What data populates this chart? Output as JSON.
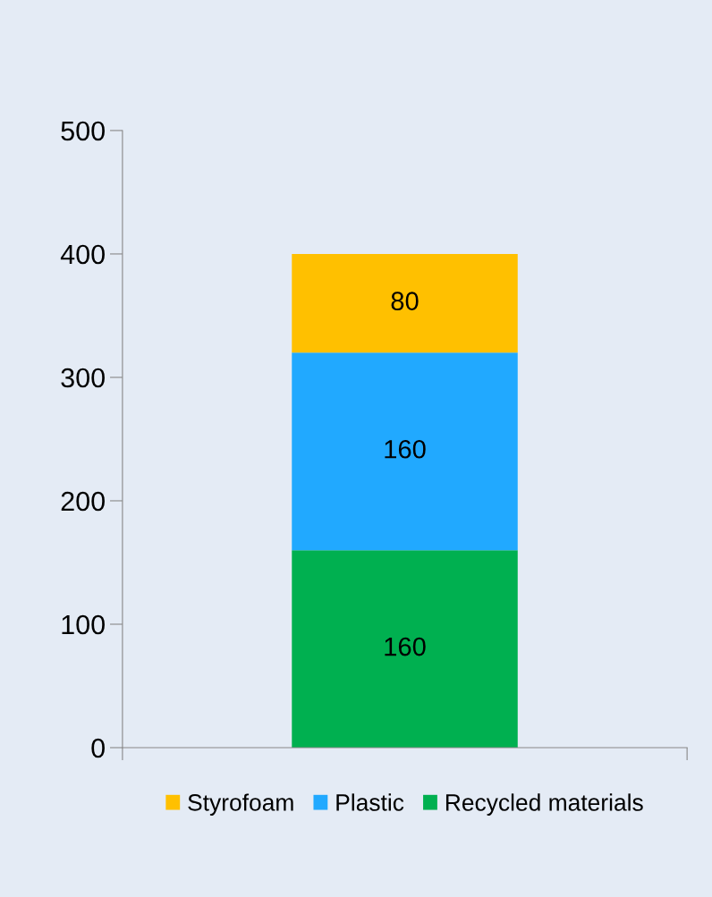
{
  "chart_data": {
    "type": "bar",
    "stacked": true,
    "categories": [
      null
    ],
    "series": [
      {
        "name": "Recycled materials",
        "color": "#00b050",
        "values": [
          160
        ]
      },
      {
        "name": "Plastic",
        "color": "#21a9ff",
        "values": [
          160
        ]
      },
      {
        "name": "Styrofoam",
        "color": "#ffc000",
        "values": [
          80
        ]
      }
    ],
    "ylim": [
      0,
      500
    ],
    "yticks": [
      0,
      100,
      200,
      300,
      400,
      500
    ],
    "data_labels": true,
    "grid": false,
    "legend": "bottom"
  }
}
